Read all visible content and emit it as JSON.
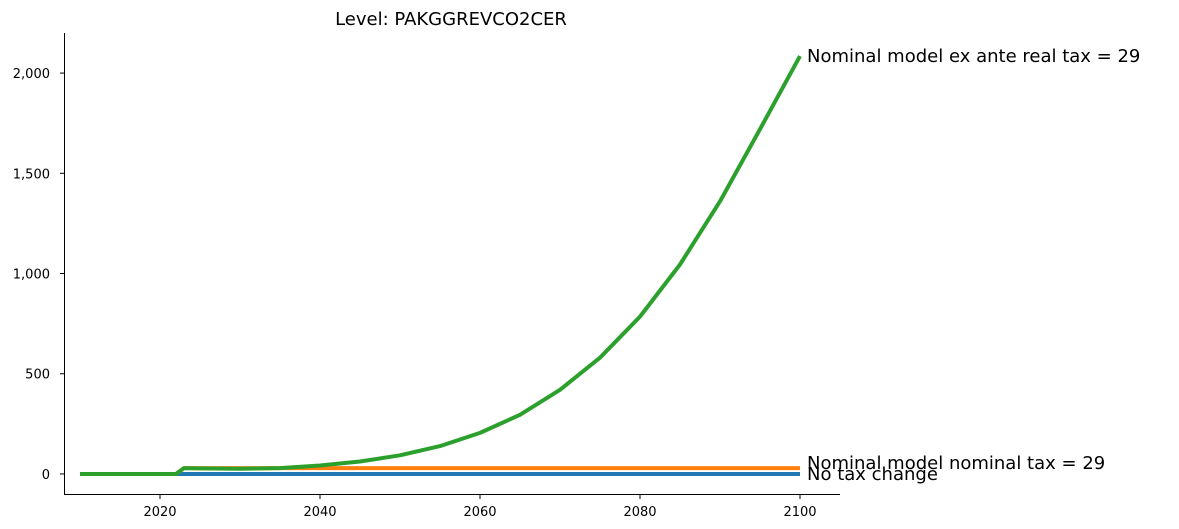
{
  "chart_data": {
    "type": "line",
    "title": "Level: PAKGGREVCO2CER",
    "xlabel": "",
    "ylabel": "",
    "xlim": [
      2008,
      2105
    ],
    "ylim": [
      -105,
      2200
    ],
    "x_ticks": [
      2020,
      2040,
      2060,
      2080,
      2100
    ],
    "x_tick_labels": [
      "2020",
      "2040",
      "2060",
      "2080",
      "2100"
    ],
    "y_ticks": [
      0,
      500,
      1000,
      1500,
      2000
    ],
    "y_tick_labels": [
      "0",
      "500",
      "1,000",
      "1,500",
      "2,000"
    ],
    "grid": false,
    "legend": "none",
    "series": [
      {
        "name": "No tax change",
        "color": "#1f77b4",
        "points": [
          [
            2010,
            0
          ],
          [
            2100,
            0
          ]
        ]
      },
      {
        "name": "Nominal model nominal tax = 29",
        "color": "#ff7f0e",
        "points": [
          [
            2010,
            0
          ],
          [
            2022,
            0
          ],
          [
            2023,
            29
          ],
          [
            2100,
            29
          ]
        ]
      },
      {
        "name": "Nominal model ex ante real tax = 29",
        "color": "#2ca02c",
        "points": [
          [
            2010,
            0
          ],
          [
            2022,
            0
          ],
          [
            2023,
            29
          ],
          [
            2025,
            28
          ],
          [
            2030,
            26
          ],
          [
            2035,
            29
          ],
          [
            2040,
            42
          ],
          [
            2045,
            62
          ],
          [
            2050,
            93
          ],
          [
            2055,
            139
          ],
          [
            2060,
            205
          ],
          [
            2065,
            295
          ],
          [
            2070,
            420
          ],
          [
            2075,
            580
          ],
          [
            2080,
            785
          ],
          [
            2085,
            1045
          ],
          [
            2090,
            1360
          ],
          [
            2095,
            1720
          ],
          [
            2100,
            2085
          ]
        ]
      }
    ],
    "annotations": [
      {
        "text": "Nominal model ex ante real tax = 29",
        "series": 2
      },
      {
        "text": "Nominal model nominal tax = 29",
        "series": 1
      },
      {
        "text": "No tax change",
        "series": 0
      }
    ]
  }
}
